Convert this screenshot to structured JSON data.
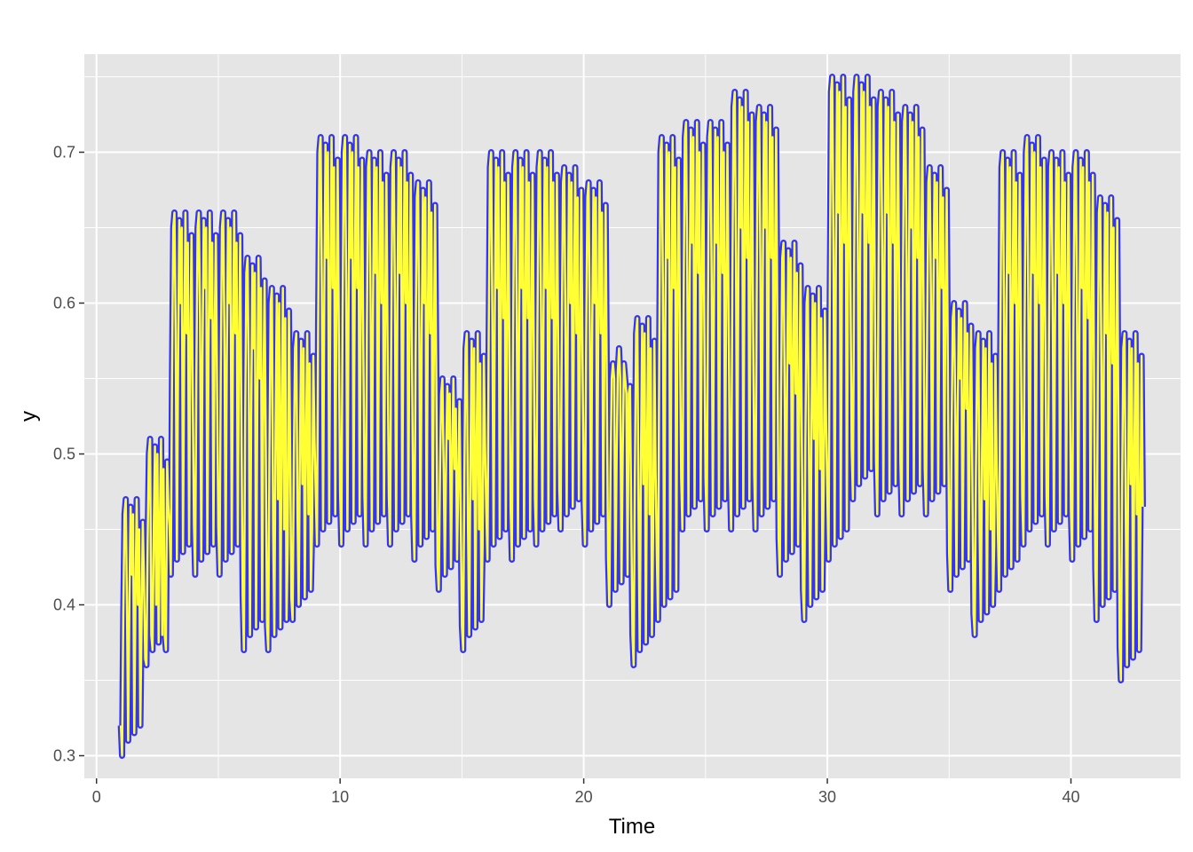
{
  "chart_data": {
    "type": "line",
    "title": "",
    "xlabel": "Time",
    "ylabel": "y",
    "xlim": [
      -0.5,
      44.5
    ],
    "ylim": [
      0.285,
      0.765
    ],
    "x_ticks": [
      0,
      10,
      20,
      30,
      40
    ],
    "x_tick_labels": [
      "0",
      "10",
      "20",
      "30",
      "40"
    ],
    "y_ticks": [
      0.3,
      0.4,
      0.5,
      0.6,
      0.7
    ],
    "y_tick_labels": [
      "0.3",
      "0.4",
      "0.5",
      "0.6",
      "0.7"
    ],
    "grid": true,
    "legend": "none",
    "background_color": "#e5e5e5",
    "grid_color": "#ffffff",
    "series_colors": [
      "#3333ff",
      "#ffff33"
    ],
    "x_start": 1,
    "x_step": 0.05,
    "cycle_low": [
      0.3,
      0.36,
      0.42,
      0.42,
      0.42,
      0.37,
      0.37,
      0.39,
      0.44,
      0.44,
      0.44,
      0.44,
      0.43,
      0.41,
      0.37,
      0.43,
      0.43,
      0.44,
      0.45,
      0.44,
      0.4,
      0.36,
      0.39,
      0.45,
      0.45,
      0.45,
      0.45,
      0.42,
      0.39,
      0.43,
      0.47,
      0.46,
      0.46,
      0.46,
      0.41,
      0.38,
      0.41,
      0.44,
      0.44,
      0.43,
      0.39,
      0.35
    ],
    "cycle_high": [
      0.47,
      0.51,
      0.66,
      0.66,
      0.66,
      0.63,
      0.61,
      0.58,
      0.71,
      0.71,
      0.7,
      0.7,
      0.68,
      0.55,
      0.58,
      0.7,
      0.7,
      0.7,
      0.69,
      0.68,
      0.56,
      0.59,
      0.71,
      0.72,
      0.72,
      0.74,
      0.73,
      0.64,
      0.61,
      0.75,
      0.75,
      0.74,
      0.73,
      0.69,
      0.6,
      0.58,
      0.7,
      0.71,
      0.7,
      0.7,
      0.67,
      0.58
    ],
    "cycle_mid": [
      0.4,
      0.38,
      0.58,
      0.59,
      0.58,
      0.55,
      0.45,
      0.46,
      0.61,
      0.61,
      0.6,
      0.6,
      0.58,
      0.49,
      0.45,
      0.59,
      0.59,
      0.59,
      0.58,
      0.58,
      0.55,
      0.46,
      0.61,
      0.62,
      0.62,
      0.63,
      0.63,
      0.54,
      0.49,
      0.64,
      0.64,
      0.64,
      0.63,
      0.61,
      0.53,
      0.45,
      0.6,
      0.6,
      0.6,
      0.59,
      0.56,
      0.46
    ]
  }
}
